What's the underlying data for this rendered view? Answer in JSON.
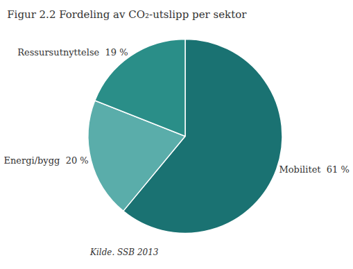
{
  "chart_data": {
    "type": "pie",
    "title": "Figur 2.2 Fordeling av CO₂-utslipp per sektor",
    "categories": [
      "Mobilitet",
      "Energi/bygg",
      "Ressursutnyttelse"
    ],
    "values": [
      61,
      20,
      19
    ],
    "value_labels": [
      "Mobilitet  61 %",
      "Energi/bygg  20 %",
      "Ressursutnyttelse  19 %"
    ],
    "colors": [
      "#1a7272",
      "#5aadaa",
      "#2a8e88"
    ],
    "data_labels": true,
    "legend": false,
    "annotations": [
      "Kilde. SSB 2013"
    ]
  }
}
